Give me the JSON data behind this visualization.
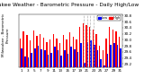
{
  "title": "Milwaukee Weather - Barometric Pressure - Daily High/Low",
  "background_color": "#ffffff",
  "legend_high_color": "#ff0000",
  "legend_low_color": "#0000ff",
  "ylim": [
    29.1,
    30.85
  ],
  "yticks": [
    29.2,
    29.4,
    29.6,
    29.8,
    30.0,
    30.2,
    30.4,
    30.6,
    30.8
  ],
  "bar_width": 0.42,
  "dashed_indices": [
    19,
    20,
    21,
    22
  ],
  "high_values": [
    30.05,
    30.28,
    30.15,
    29.98,
    30.32,
    30.12,
    30.18,
    30.08,
    29.92,
    30.02,
    30.18,
    30.05,
    29.88,
    30.15,
    30.02,
    30.25,
    30.1,
    30.02,
    30.42,
    30.55,
    30.48,
    30.42,
    30.35,
    30.2,
    29.8,
    29.65,
    30.05,
    30.42,
    30.35,
    30.28,
    30.1
  ],
  "low_values": [
    29.72,
    29.45,
    29.42,
    29.58,
    29.72,
    29.8,
    29.68,
    29.65,
    29.5,
    29.58,
    29.78,
    29.65,
    29.48,
    29.65,
    29.55,
    29.78,
    29.68,
    29.6,
    29.88,
    29.25,
    29.92,
    29.98,
    29.82,
    29.65,
    29.35,
    29.15,
    29.55,
    29.82,
    29.88,
    29.82,
    29.72
  ],
  "high_color": "#ff0000",
  "low_color": "#0000ff",
  "x_labels": [
    "1",
    "",
    "3",
    "",
    "5",
    "",
    "7",
    "",
    "9",
    "",
    "11",
    "",
    "13",
    "",
    "15",
    "",
    "17",
    "",
    "19",
    "",
    "21",
    "",
    "23",
    "",
    "25",
    "",
    "27",
    "",
    "29",
    "",
    "31"
  ],
  "title_fontsize": 4.2,
  "tick_fontsize": 3.0,
  "fig_bg": "#ffffff",
  "left_label": "Milwaukee - Barometric",
  "left_label2": "Pressure"
}
